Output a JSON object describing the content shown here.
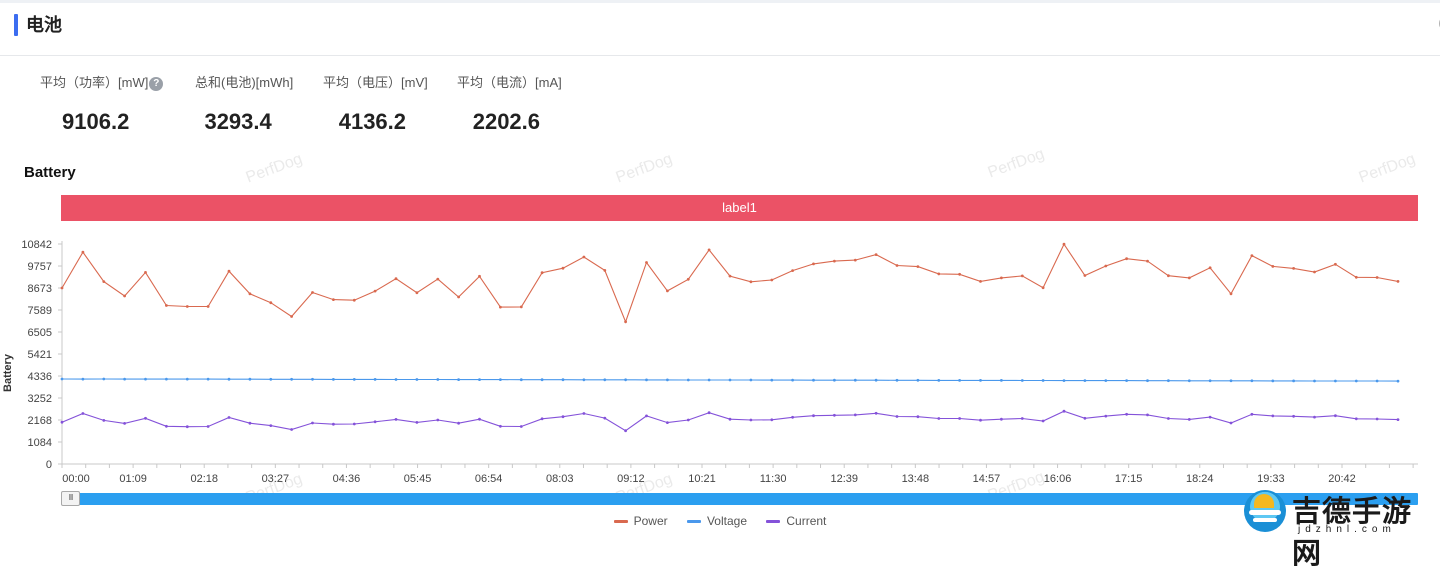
{
  "header": {
    "title": "电池"
  },
  "metrics": [
    {
      "label": "平均（功率）[mW]",
      "value": "9106.2",
      "help": true
    },
    {
      "label": "总和(电池)[mWh]",
      "value": "3293.4"
    },
    {
      "label": "平均（电压）[mV]",
      "value": "4136.2"
    },
    {
      "label": "平均（电流）[mA]",
      "value": "2202.6"
    }
  ],
  "chart_title": "Battery",
  "label_bar": "label1",
  "watermark": "PerfDog",
  "slider": {
    "handle_glyph": "III"
  },
  "brand": {
    "name": "吉德手游网",
    "domain": "jdzhnl.com"
  },
  "chart_data": {
    "type": "line",
    "title": "Battery",
    "xlabel": "",
    "ylabel": "Battery",
    "ylim": [
      0,
      10842
    ],
    "y_ticks": [
      0,
      1084,
      2168,
      3252,
      4336,
      5421,
      6505,
      7589,
      8673,
      9757,
      10842
    ],
    "x_tick_labels": [
      "00:00",
      "01:09",
      "02:18",
      "03:27",
      "04:36",
      "05:45",
      "06:54",
      "08:03",
      "09:12",
      "10:21",
      "11:30",
      "12:39",
      "13:48",
      "14:57",
      "16:06",
      "17:15",
      "18:24",
      "19:33",
      "20:42"
    ],
    "x_range_seconds": [
      0,
      1320
    ],
    "grid": false,
    "legend_position": "bottom",
    "series": [
      {
        "name": "Power",
        "color": "#d9694f",
        "values": [
          8673,
          10440,
          8990,
          8280,
          9440,
          7810,
          7760,
          7760,
          9500,
          8390,
          7950,
          7270,
          8450,
          8100,
          8070,
          8520,
          9130,
          8440,
          9110,
          8230,
          9250,
          7730,
          7740,
          9430,
          9650,
          10200,
          9540,
          7010,
          9930,
          8530,
          9100,
          10550,
          9260,
          8980,
          9070,
          9530,
          9860,
          10000,
          10050,
          10320,
          9780,
          9730,
          9370,
          9350,
          9000,
          9170,
          9270,
          8690,
          10830,
          9290,
          9760,
          10120,
          10000,
          9280,
          9170,
          9670,
          8390,
          10270,
          9740,
          9640,
          9460,
          9840,
          9200,
          9190,
          9000
        ]
      },
      {
        "name": "Voltage",
        "color": "#4a98ec",
        "values": [
          4190,
          4182,
          4190,
          4186,
          4182,
          4182,
          4186,
          4182,
          4180,
          4178,
          4176,
          4174,
          4172,
          4170,
          4168,
          4168,
          4166,
          4164,
          4162,
          4160,
          4160,
          4158,
          4156,
          4154,
          4152,
          4150,
          4150,
          4148,
          4146,
          4144,
          4142,
          4140,
          4140,
          4138,
          4136,
          4134,
          4132,
          4130,
          4130,
          4128,
          4126,
          4124,
          4122,
          4120,
          4120,
          4118,
          4116,
          4114,
          4112,
          4110,
          4110,
          4108,
          4106,
          4104,
          4102,
          4100,
          4100,
          4098,
          4096,
          4094,
          4092,
          4090,
          4090,
          4088,
          4086
        ]
      },
      {
        "name": "Current",
        "color": "#8452d9",
        "values": [
          2060,
          2490,
          2150,
          2000,
          2250,
          1860,
          1840,
          1850,
          2290,
          2010,
          1890,
          1700,
          2020,
          1960,
          1970,
          2080,
          2200,
          2050,
          2170,
          2010,
          2210,
          1860,
          1850,
          2230,
          2330,
          2490,
          2260,
          1640,
          2370,
          2040,
          2170,
          2530,
          2210,
          2170,
          2180,
          2300,
          2380,
          2400,
          2420,
          2500,
          2340,
          2330,
          2240,
          2240,
          2160,
          2210,
          2240,
          2120,
          2600,
          2250,
          2360,
          2450,
          2420,
          2240,
          2200,
          2310,
          2020,
          2450,
          2370,
          2350,
          2310,
          2380,
          2230,
          2220,
          2190
        ]
      }
    ]
  }
}
